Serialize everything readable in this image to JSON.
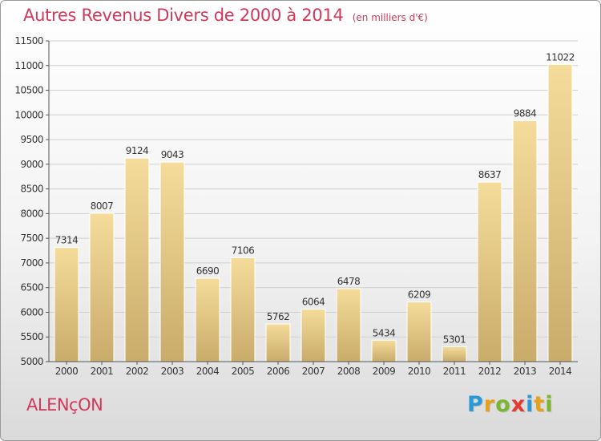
{
  "header": {
    "title": "Autres Revenus Divers de 2000 à 2014",
    "subtitle": "(en milliers d'€)"
  },
  "footer": {
    "city": "ALENçON",
    "brand": [
      "P",
      "r",
      "o",
      "x",
      "i",
      "t",
      "i"
    ],
    "brand_colors": [
      "#2a9ad6",
      "#e6a019",
      "#7ab730",
      "#e63a2f",
      "#2a9ad6",
      "#e6a019",
      "#7ab730"
    ]
  },
  "chart_data": {
    "type": "bar",
    "categories": [
      "2000",
      "2001",
      "2002",
      "2003",
      "2004",
      "2005",
      "2006",
      "2007",
      "2008",
      "2009",
      "2010",
      "2011",
      "2012",
      "2013",
      "2014"
    ],
    "values": [
      7314,
      8007,
      9124,
      9043,
      6690,
      7106,
      5762,
      6064,
      6478,
      5434,
      6209,
      5301,
      8637,
      9884,
      11022
    ],
    "ylim": [
      5000,
      11500
    ],
    "yticks": [
      5000,
      5500,
      6000,
      6500,
      7000,
      7500,
      8000,
      8500,
      9000,
      9500,
      10000,
      10500,
      11000,
      11500
    ],
    "grid": true,
    "legend": "none",
    "bar_color_light": "#f5dc9a",
    "bar_color_dark": "#c9ab6a",
    "label_color": "#333333"
  }
}
